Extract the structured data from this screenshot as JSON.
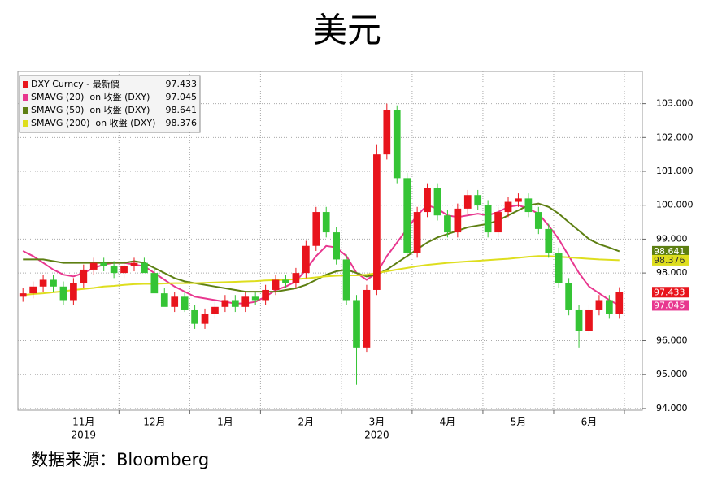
{
  "chart_data": {
    "type": "candlestick",
    "title": "美元",
    "source": "数据来源：Bloomberg",
    "categories": [
      null,
      null,
      null,
      null,
      null,
      null,
      "11月",
      null,
      null,
      null,
      null,
      null,
      null,
      "12月",
      null,
      null,
      null,
      null,
      null,
      null,
      "1月",
      null,
      null,
      null,
      null,
      null,
      null,
      null,
      "2月",
      null,
      null,
      null,
      null,
      null,
      null,
      "3月",
      null,
      null,
      null,
      null,
      null,
      null,
      "4月",
      null,
      null,
      null,
      null,
      null,
      null,
      "5月",
      null,
      null,
      null,
      null,
      null,
      null,
      "6月",
      null,
      null,
      null
    ],
    "year_labels": [
      null,
      null,
      null,
      null,
      null,
      null,
      "2019",
      null,
      null,
      null,
      null,
      null,
      null,
      null,
      null,
      null,
      null,
      null,
      null,
      null,
      null,
      null,
      null,
      null,
      null,
      null,
      null,
      null,
      null,
      null,
      null,
      null,
      null,
      null,
      null,
      "2020",
      null,
      null,
      null,
      null,
      null,
      null,
      null,
      null,
      null,
      null,
      null,
      null,
      null,
      null,
      null,
      null,
      null,
      null,
      null,
      null,
      null,
      null,
      null,
      null
    ],
    "candles": {
      "name": "DXY Curncy - 最新價",
      "up_color": "#e8141c",
      "down_color": "#35c435",
      "open": [
        97.3,
        97.4,
        97.6,
        97.8,
        97.6,
        97.2,
        97.7,
        98.1,
        98.3,
        98.2,
        98.0,
        98.2,
        98.3,
        98.0,
        97.4,
        97.0,
        97.3,
        96.9,
        96.5,
        96.8,
        97.0,
        97.2,
        97.0,
        97.3,
        97.2,
        97.5,
        97.8,
        97.7,
        98.0,
        98.8,
        99.8,
        99.2,
        98.4,
        97.2,
        95.8,
        97.5,
        101.5,
        102.8,
        100.8,
        98.6,
        99.8,
        100.5,
        99.7,
        99.2,
        99.9,
        100.3,
        100.0,
        99.2,
        99.8,
        100.1,
        100.2,
        99.8,
        99.3,
        98.6,
        97.7,
        96.9,
        96.3,
        96.9,
        97.2,
        96.8
      ],
      "high": [
        97.55,
        97.75,
        97.95,
        97.95,
        97.75,
        97.85,
        98.25,
        98.45,
        98.45,
        98.35,
        98.35,
        98.45,
        98.45,
        98.15,
        97.55,
        97.45,
        97.45,
        97.05,
        96.95,
        97.15,
        97.35,
        97.35,
        97.45,
        97.45,
        97.65,
        97.95,
        97.95,
        98.15,
        98.95,
        99.95,
        99.95,
        99.35,
        98.55,
        97.35,
        97.65,
        101.8,
        103.0,
        102.95,
        100.95,
        99.95,
        100.65,
        100.65,
        99.85,
        100.05,
        100.45,
        100.45,
        100.15,
        99.95,
        100.25,
        100.35,
        100.35,
        99.95,
        99.45,
        98.75,
        97.85,
        97.05,
        97.05,
        97.35,
        97.35,
        97.58
      ],
      "low": [
        97.15,
        97.25,
        97.45,
        97.45,
        97.05,
        97.05,
        97.55,
        97.95,
        98.05,
        97.85,
        97.85,
        98.05,
        98.05,
        97.85,
        97.25,
        96.85,
        96.85,
        96.35,
        96.35,
        96.65,
        96.85,
        96.85,
        96.85,
        97.05,
        97.05,
        97.35,
        97.55,
        97.55,
        97.85,
        98.65,
        99.05,
        98.25,
        97.05,
        94.7,
        95.65,
        97.35,
        101.35,
        100.65,
        98.45,
        98.45,
        99.65,
        99.55,
        99.05,
        99.05,
        99.75,
        99.85,
        99.05,
        99.05,
        99.65,
        99.95,
        99.65,
        99.15,
        98.45,
        97.55,
        96.75,
        95.8,
        96.15,
        96.75,
        96.65,
        96.65
      ],
      "close": [
        97.4,
        97.6,
        97.8,
        97.6,
        97.2,
        97.7,
        98.1,
        98.3,
        98.2,
        98.0,
        98.2,
        98.3,
        98.0,
        97.4,
        97.0,
        97.3,
        96.9,
        96.5,
        96.8,
        97.0,
        97.2,
        97.0,
        97.3,
        97.2,
        97.5,
        97.8,
        97.7,
        98.0,
        98.8,
        99.8,
        99.2,
        98.4,
        97.2,
        95.8,
        97.5,
        101.5,
        102.8,
        100.8,
        98.6,
        99.8,
        100.5,
        99.7,
        99.2,
        99.9,
        100.3,
        100.0,
        99.2,
        99.8,
        100.1,
        100.2,
        99.8,
        99.3,
        98.6,
        97.7,
        96.9,
        96.3,
        96.9,
        97.2,
        96.8,
        97.433
      ]
    },
    "series": [
      {
        "name": "SMAVG (20)  on 收盤 (DXY)",
        "color": "#e8378f",
        "values": [
          98.65,
          98.5,
          98.3,
          98.1,
          97.95,
          97.9,
          98.0,
          98.15,
          98.25,
          98.3,
          98.3,
          98.25,
          98.2,
          98.0,
          97.8,
          97.6,
          97.45,
          97.3,
          97.25,
          97.2,
          97.15,
          97.1,
          97.1,
          97.15,
          97.3,
          97.5,
          97.6,
          97.75,
          98.1,
          98.5,
          98.8,
          98.75,
          98.5,
          98.0,
          97.8,
          98.0,
          98.5,
          98.9,
          99.3,
          99.7,
          100.0,
          99.9,
          99.7,
          99.65,
          99.7,
          99.75,
          99.7,
          99.8,
          99.95,
          100.0,
          99.9,
          99.75,
          99.4,
          99.0,
          98.5,
          98.0,
          97.6,
          97.4,
          97.2,
          97.045
        ]
      },
      {
        "name": "SMAVG (50)  on 收盤 (DXY)",
        "color": "#5d7f12",
        "values": [
          98.4,
          98.4,
          98.4,
          98.35,
          98.3,
          98.3,
          98.3,
          98.3,
          98.3,
          98.3,
          98.3,
          98.35,
          98.3,
          98.15,
          98.0,
          97.85,
          97.75,
          97.7,
          97.65,
          97.6,
          97.55,
          97.5,
          97.45,
          97.45,
          97.45,
          97.45,
          97.5,
          97.55,
          97.65,
          97.8,
          97.95,
          98.05,
          98.1,
          98.0,
          97.9,
          97.95,
          98.1,
          98.3,
          98.5,
          98.7,
          98.9,
          99.05,
          99.15,
          99.25,
          99.35,
          99.4,
          99.45,
          99.55,
          99.7,
          99.85,
          100.0,
          100.05,
          99.95,
          99.75,
          99.5,
          99.25,
          99.0,
          98.85,
          98.75,
          98.641
        ]
      },
      {
        "name": "SMAVG (200)  on 收盤 (DXY)",
        "color": "#dede1e",
        "values": [
          97.35,
          97.38,
          97.4,
          97.43,
          97.46,
          97.5,
          97.53,
          97.56,
          97.6,
          97.62,
          97.65,
          97.67,
          97.68,
          97.68,
          97.69,
          97.7,
          97.7,
          97.7,
          97.71,
          97.72,
          97.73,
          97.74,
          97.75,
          97.76,
          97.78,
          97.79,
          97.8,
          97.82,
          97.84,
          97.87,
          97.9,
          97.92,
          97.93,
          97.93,
          97.95,
          98.0,
          98.05,
          98.1,
          98.15,
          98.2,
          98.24,
          98.27,
          98.3,
          98.32,
          98.34,
          98.36,
          98.38,
          98.4,
          98.42,
          98.45,
          98.48,
          98.5,
          98.5,
          98.48,
          98.46,
          98.44,
          98.42,
          98.4,
          98.39,
          98.376
        ]
      }
    ],
    "ylim": [
      93.95,
      103.95
    ],
    "yticks": [
      {
        "value": 94,
        "label": "94.000"
      },
      {
        "value": 95,
        "label": "95.000"
      },
      {
        "value": 96,
        "label": "96.000"
      },
      {
        "value": 98,
        "label": "98.000"
      },
      {
        "value": 99,
        "label": "99.000"
      },
      {
        "value": 100,
        "label": "100.000"
      },
      {
        "value": 101,
        "label": "101.000"
      },
      {
        "value": 102,
        "label": "102.000"
      },
      {
        "value": 103,
        "label": "103.000"
      }
    ],
    "grid": true,
    "legend": "upper left"
  }
}
